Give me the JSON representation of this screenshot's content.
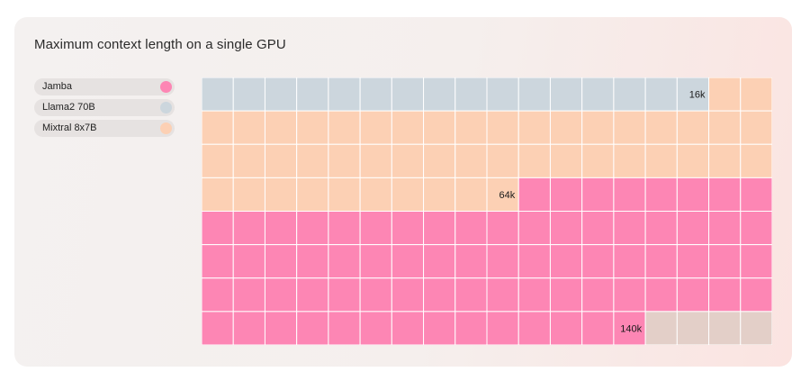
{
  "title": "Maximum context length on a single GPU",
  "legend": [
    {
      "name": "Jamba",
      "color": "#fd86b4"
    },
    {
      "name": "Llama2 70B",
      "color": "#ccd6dd"
    },
    {
      "name": "Mixtral 8x7B",
      "color": "#fcd0b4"
    }
  ],
  "chart_data": {
    "type": "waffle",
    "grid": {
      "columns": 18,
      "rows": 8,
      "unit_cells": 144,
      "unit_label": "1k tokens per cell"
    },
    "empty_color": "#e3cfc8",
    "series": [
      {
        "name": "Llama2 70B",
        "label": "16k",
        "cells": 16,
        "color": "#ccd6dd"
      },
      {
        "name": "Mixtral 8x7B",
        "label": "64k",
        "cells": 64,
        "color": "#fcd0b4"
      },
      {
        "name": "Jamba",
        "label": "140k",
        "cells": 140,
        "color": "#fd86b4"
      }
    ]
  }
}
